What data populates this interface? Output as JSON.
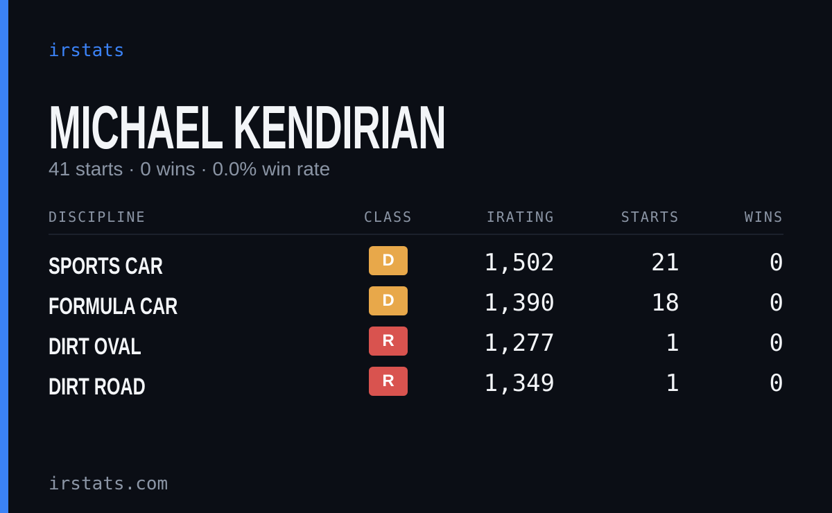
{
  "brand": "irstats",
  "header": {
    "name": "MICHAEL KENDIRIAN",
    "summary": "41 starts · 0 wins · 0.0% win rate"
  },
  "table": {
    "columns": [
      "DISCIPLINE",
      "CLASS",
      "IRATING",
      "STARTS",
      "WINS"
    ],
    "rows": [
      {
        "discipline": "SPORTS CAR",
        "class": "D",
        "class_color": "#e8a84a",
        "irating": "1,502",
        "starts": "21",
        "wins": "0"
      },
      {
        "discipline": "FORMULA CAR",
        "class": "D",
        "class_color": "#e8a84a",
        "irating": "1,390",
        "starts": "18",
        "wins": "0"
      },
      {
        "discipline": "DIRT OVAL",
        "class": "R",
        "class_color": "#d9534f",
        "irating": "1,277",
        "starts": "1",
        "wins": "0"
      },
      {
        "discipline": "DIRT ROAD",
        "class": "R",
        "class_color": "#d9534f",
        "irating": "1,349",
        "starts": "1",
        "wins": "0"
      }
    ]
  },
  "footer": "irstats.com"
}
